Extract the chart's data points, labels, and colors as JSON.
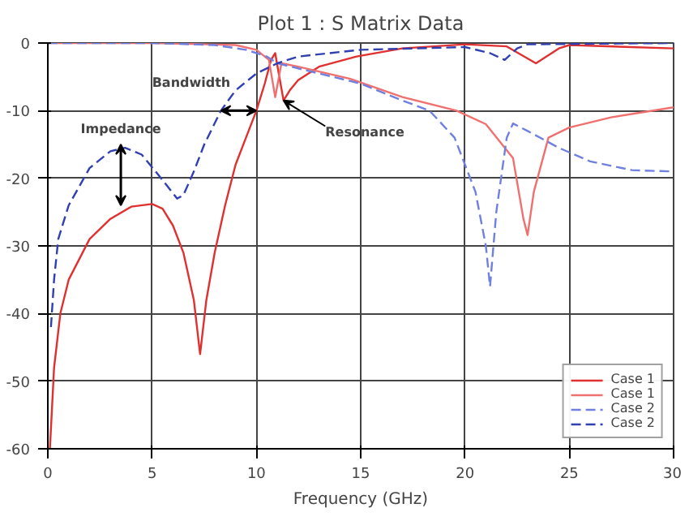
{
  "chart_data": {
    "type": "line",
    "title": "Plot 1 : S Matrix Data",
    "xlabel": "Frequency (GHz)",
    "xlim": [
      0,
      30
    ],
    "ylim": [
      -60,
      0
    ],
    "xticks": [
      0,
      5,
      10,
      15,
      20,
      25,
      30
    ],
    "yticks": [
      0,
      -10,
      -20,
      -30,
      -40,
      -50,
      -60
    ],
    "grid": true,
    "legend": "bottom right",
    "marker": "none",
    "series": [
      {
        "name": "Case 1",
        "color": "#e03030",
        "line_style": "solid",
        "x": [
          0.1,
          0.3,
          0.6,
          1,
          2,
          3,
          4,
          5,
          5.5,
          6,
          6.5,
          7,
          7.3,
          7.6,
          8,
          8.5,
          9,
          9.5,
          10,
          10.4,
          10.7,
          10.9,
          11.1,
          11.3,
          11.6,
          12,
          13,
          14.8,
          17,
          20,
          22,
          23.4,
          24.5,
          25,
          30
        ],
        "values": [
          -60,
          -48,
          -40,
          -35,
          -29,
          -26,
          -24.2,
          -23.8,
          -24.5,
          -27,
          -31,
          -38,
          -46,
          -38,
          -31,
          -24,
          -18,
          -14,
          -10,
          -6,
          -2.5,
          -1.5,
          -5,
          -8.5,
          -7,
          -5.5,
          -3.5,
          -2,
          -0.8,
          -0.2,
          -0.5,
          -3,
          -0.8,
          -0.3,
          -0.8
        ]
      },
      {
        "name": "Case 1",
        "color": "#f07070",
        "line_style": "solid",
        "x": [
          0,
          5,
          9,
          10,
          10.6,
          10.9,
          11.2,
          12,
          14.5,
          17,
          19.6,
          21,
          22.3,
          22.8,
          23,
          23.3,
          24,
          25,
          27,
          30
        ],
        "values": [
          0,
          0,
          -0.3,
          -1,
          -2.5,
          -8,
          -3,
          -3.5,
          -5.3,
          -8,
          -10,
          -12,
          -17,
          -26,
          -28.4,
          -22,
          -14,
          -12.5,
          -11,
          -9.5
        ]
      },
      {
        "name": "Case 2",
        "color": "#7080e0",
        "line_style": "dashed",
        "x": [
          0,
          5,
          8,
          9.5,
          10.5,
          11,
          13,
          15,
          17,
          18.3,
          19.5,
          20.5,
          21,
          21.2,
          21.5,
          22,
          22.3,
          23,
          24.5,
          26,
          28,
          30
        ],
        "values": [
          0,
          0,
          -0.3,
          -1,
          -2,
          -3,
          -4.5,
          -6,
          -8.5,
          -10,
          -14,
          -22,
          -30,
          -36,
          -25,
          -14,
          -11.9,
          -13,
          -15.5,
          -17.5,
          -18.8,
          -19
        ]
      },
      {
        "name": "Case 2",
        "color": "#3040b0",
        "line_style": "dashed",
        "x": [
          0.15,
          0.3,
          0.5,
          1,
          2,
          3,
          3.7,
          4.5,
          5.3,
          6.2,
          6.5,
          7,
          7.5,
          8.3,
          9,
          10,
          11,
          12,
          15,
          20,
          21.2,
          21.9,
          22.5,
          23,
          30
        ],
        "values": [
          -42,
          -35,
          -29,
          -24,
          -18.5,
          -16,
          -15.5,
          -16.5,
          -19.5,
          -23,
          -22.5,
          -19,
          -15,
          -10,
          -7,
          -4.5,
          -3,
          -2,
          -1,
          -0.6,
          -1.5,
          -2.5,
          -0.8,
          -0.2,
          0
        ]
      }
    ],
    "annotations": [
      {
        "text": "Bandwidth",
        "x": 10,
        "y": -10
      },
      {
        "text": "Impedance",
        "x": 3.5,
        "y": -24
      },
      {
        "text": "Resonance",
        "x": 11.3,
        "y": -8.5
      }
    ]
  }
}
